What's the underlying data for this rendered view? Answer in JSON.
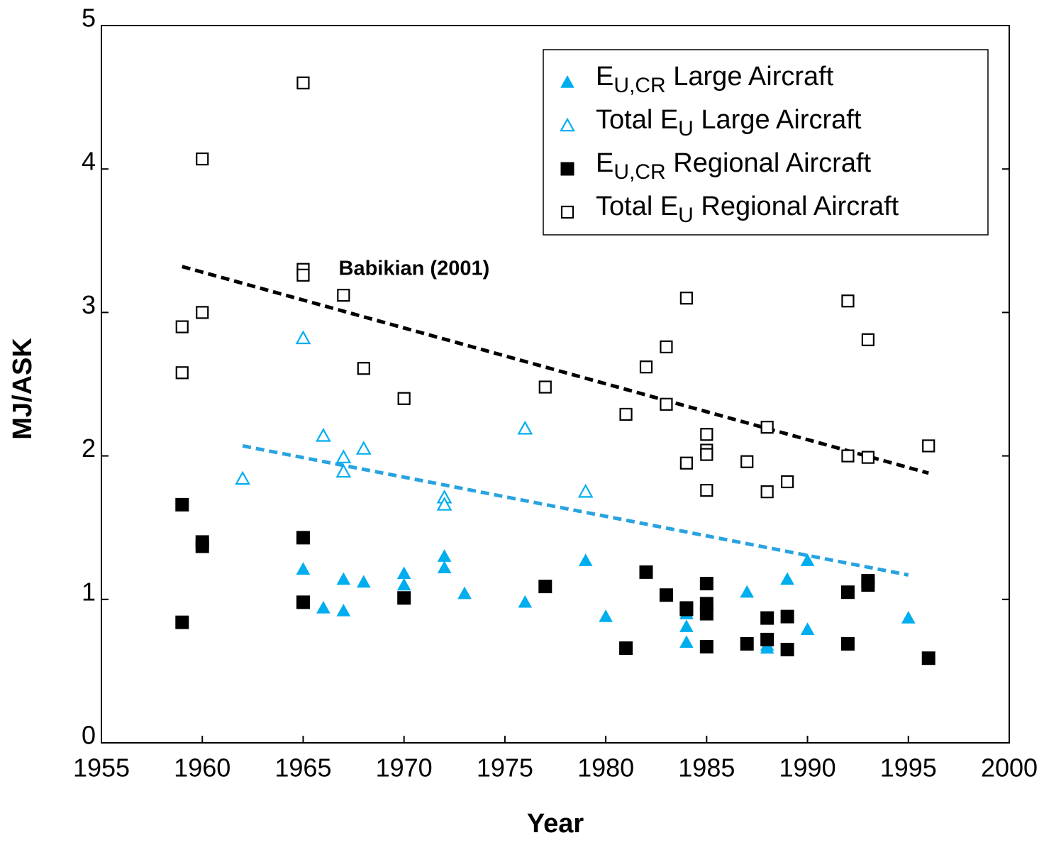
{
  "chart_data": {
    "type": "scatter",
    "xlabel": "Year",
    "ylabel": "MJ/ASK",
    "xlim": [
      1955,
      2000
    ],
    "ylim": [
      0,
      5
    ],
    "xticks": [
      1955,
      1960,
      1965,
      1970,
      1975,
      1980,
      1985,
      1990,
      1995,
      2000
    ],
    "yticks": [
      0,
      1,
      2,
      3,
      4,
      5
    ],
    "legend": "upper right",
    "annotations": [
      {
        "text": "Babikian (2001)",
        "x": 1970.5,
        "y": 3.3
      }
    ],
    "series": [
      {
        "name": "E_U,CR Large Aircraft",
        "color": "#00aeef",
        "marker": "triangle",
        "filled": true,
        "x": [
          1965,
          1966,
          1967,
          1967,
          1968,
          1970,
          1970,
          1972,
          1972,
          1973,
          1976,
          1979,
          1980,
          1983,
          1984,
          1984,
          1984,
          1985,
          1987,
          1988,
          1988,
          1989,
          1990,
          1990,
          1995
        ],
        "values": [
          1.21,
          0.94,
          1.14,
          0.92,
          1.12,
          1.18,
          1.1,
          1.3,
          1.22,
          1.04,
          0.98,
          1.27,
          0.88,
          1.03,
          0.9,
          0.81,
          0.7,
          0.96,
          1.05,
          0.68,
          0.66,
          1.14,
          1.27,
          0.79,
          0.87
        ]
      },
      {
        "name": "Total E_U Large Aircraft",
        "color": "#00aeef",
        "marker": "triangle",
        "filled": false,
        "x": [
          1962,
          1965,
          1966,
          1967,
          1967,
          1968,
          1972,
          1972,
          1976,
          1979
        ],
        "values": [
          1.84,
          2.82,
          2.14,
          1.99,
          1.89,
          2.05,
          1.71,
          1.66,
          2.19,
          1.75
        ]
      },
      {
        "name": "E_U,CR Regional Aircraft",
        "color": "#000000",
        "marker": "square",
        "filled": true,
        "x": [
          1959,
          1959,
          1960,
          1960,
          1965,
          1965,
          1970,
          1977,
          1981,
          1982,
          1983,
          1984,
          1984,
          1985,
          1985,
          1985,
          1985,
          1987,
          1988,
          1988,
          1989,
          1989,
          1992,
          1992,
          1993,
          1993,
          1996
        ],
        "values": [
          1.66,
          0.84,
          1.4,
          1.37,
          1.43,
          0.98,
          1.01,
          1.09,
          0.66,
          1.19,
          1.03,
          0.94,
          0.93,
          1.11,
          0.97,
          0.9,
          0.67,
          0.69,
          0.87,
          0.72,
          0.88,
          0.65,
          1.05,
          0.69,
          1.13,
          1.1,
          0.59
        ]
      },
      {
        "name": "Total E_U Regional Aircraft",
        "color": "#000000",
        "marker": "square",
        "filled": false,
        "x": [
          1959,
          1959,
          1960,
          1960,
          1965,
          1965,
          1965,
          1967,
          1968,
          1970,
          1977,
          1981,
          1982,
          1983,
          1983,
          1984,
          1984,
          1985,
          1985,
          1985,
          1985,
          1987,
          1988,
          1988,
          1989,
          1992,
          1992,
          1993,
          1993,
          1996
        ],
        "values": [
          2.9,
          2.58,
          4.07,
          3.0,
          4.6,
          3.3,
          3.26,
          3.12,
          2.61,
          2.4,
          2.48,
          2.29,
          2.62,
          2.76,
          2.36,
          3.1,
          1.95,
          2.15,
          2.04,
          2.01,
          1.76,
          1.96,
          2.2,
          1.75,
          1.82,
          3.08,
          2.0,
          2.81,
          1.99,
          2.07
        ]
      }
    ],
    "trendlines": [
      {
        "color": "#000000",
        "x": [
          1959,
          1996
        ],
        "values": [
          3.32,
          1.88
        ]
      },
      {
        "color": "#29a3e0",
        "x": [
          1962,
          1995
        ],
        "values": [
          2.07,
          1.17
        ]
      }
    ]
  }
}
